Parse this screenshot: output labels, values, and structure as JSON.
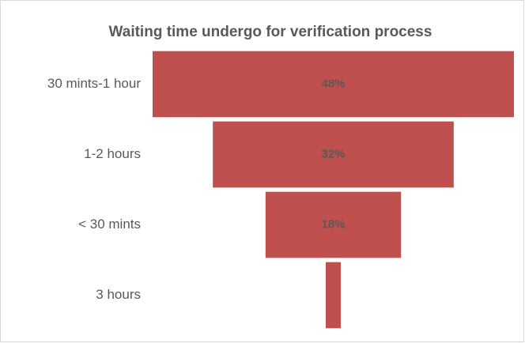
{
  "chart_data": {
    "type": "funnel",
    "title": "Waiting time undergo for verification process",
    "categories": [
      "30 mints-1 hour",
      "1-2 hours",
      "< 30 mints",
      "3 hours"
    ],
    "values": [
      48,
      32,
      18,
      2
    ],
    "value_labels": [
      "48%",
      "32%",
      "18%",
      null
    ],
    "color": "#c0504d"
  }
}
